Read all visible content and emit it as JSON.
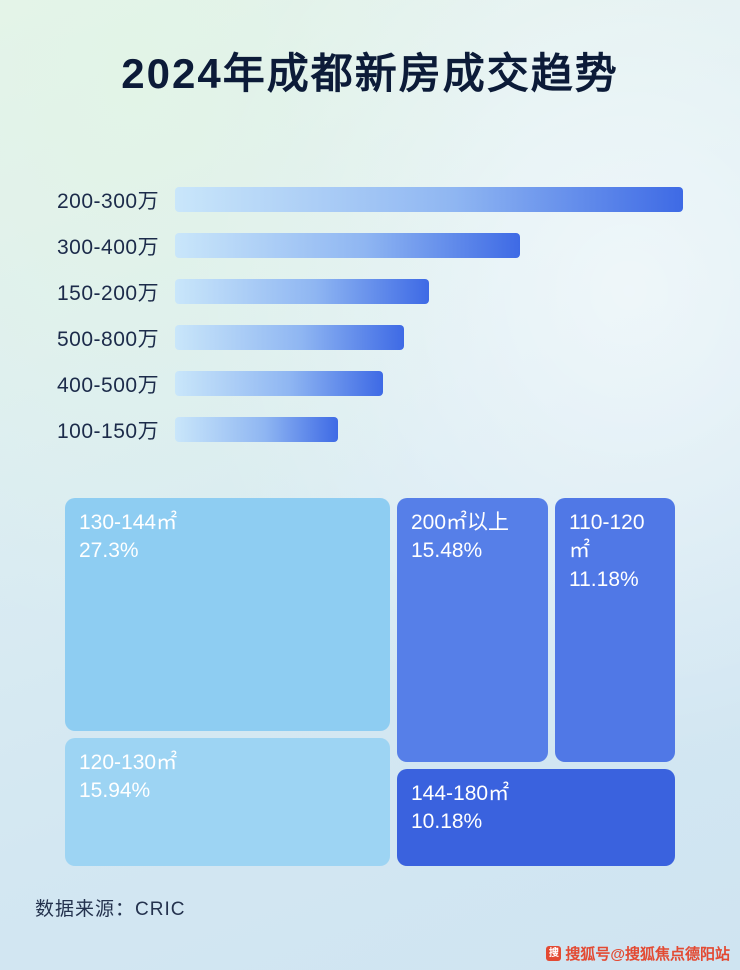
{
  "page": {
    "title": "2024年成都新房成交趋势",
    "source": "数据来源：CRIC",
    "watermark": "搜狐号@搜狐焦点德阳站"
  },
  "colors": {
    "title_text": "#0c1b38",
    "bar_label_text": "#1c2b4a",
    "bar_gradient_start": "#c9e6fa",
    "bar_gradient_end": "#3e6ae5",
    "treemap_130_144": "#8ecdf2",
    "treemap_120_130": "#9dd4f3",
    "treemap_200_plus": "#567fe8",
    "treemap_110_120": "#5078e6",
    "treemap_144_180": "#3a62de",
    "treemap_text": "#ffffff",
    "watermark_text": "#e34a33",
    "background_top": "#e6f3ec",
    "background_bottom": "#cfe4f1"
  },
  "chart_data": [
    {
      "type": "bar",
      "orientation": "horizontal",
      "title": "2024年成都新房成交趋势",
      "categories": [
        "200-300万",
        "300-400万",
        "150-200万",
        "500-800万",
        "400-500万",
        "100-150万"
      ],
      "values": [
        100,
        68,
        50,
        45,
        41,
        32
      ],
      "value_note": "relative bar length, percent of longest bar (no numeric axis shown)",
      "xlabel": "",
      "ylabel": "",
      "grid": false,
      "legend": false
    },
    {
      "type": "treemap",
      "items": [
        {
          "label": "130-144㎡",
          "value": 27.3,
          "display": "27.3%"
        },
        {
          "label": "120-130㎡",
          "value": 15.94,
          "display": "15.94%"
        },
        {
          "label": "200㎡以上",
          "value": 15.48,
          "display": "15.48%"
        },
        {
          "label": "110-120㎡",
          "value": 11.18,
          "display": "11.18%"
        },
        {
          "label": "144-180㎡",
          "value": 10.18,
          "display": "10.18%"
        }
      ]
    }
  ]
}
